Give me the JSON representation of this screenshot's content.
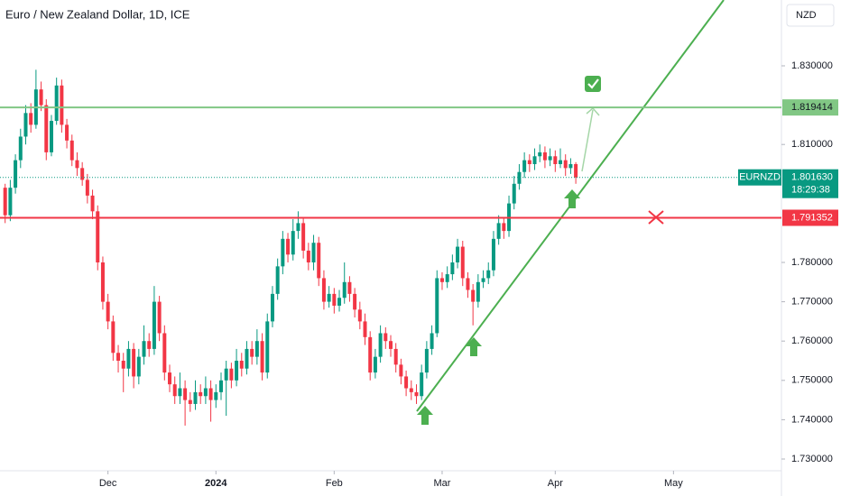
{
  "chart_data": {
    "type": "candlestick",
    "title": "Euro / New Zealand Dollar, 1D, ICE",
    "currency": "NZD",
    "up_color": "#089981",
    "down_color": "#f23645",
    "ylim": [
      1.727018,
      1.846743
    ],
    "yticks": [
      {
        "value": 1.73,
        "label": "1.730000"
      },
      {
        "value": 1.74,
        "label": "1.740000"
      },
      {
        "value": 1.75,
        "label": "1.750000"
      },
      {
        "value": 1.76,
        "label": "1.760000"
      },
      {
        "value": 1.77,
        "label": "1.770000"
      },
      {
        "value": 1.78,
        "label": "1.780000"
      },
      {
        "value": 1.81,
        "label": "1.810000"
      },
      {
        "value": 1.83,
        "label": "1.830000"
      }
    ],
    "xlim": [
      -1,
      151
    ],
    "xticks": [
      {
        "value": 20,
        "label": "Dec"
      },
      {
        "value": 41,
        "label": "2024"
      },
      {
        "value": 64,
        "label": "Feb"
      },
      {
        "value": 85,
        "label": "Mar"
      },
      {
        "value": 107,
        "label": "Apr"
      },
      {
        "value": 130,
        "label": "May"
      }
    ],
    "levels": [
      {
        "value": 1.819414,
        "label": "1.819414",
        "color": "#81c784"
      },
      {
        "value": 1.791352,
        "label": "1.791352",
        "color": "#f23645"
      }
    ],
    "last_price": {
      "value": 1.80163,
      "label": "1.801630",
      "symbol": "EURNZD",
      "countdown": "18:29:38"
    },
    "ohlc": [
      [
        1.799,
        1.8,
        1.79,
        1.792
      ],
      [
        1.792,
        1.801,
        1.7905,
        1.799
      ],
      [
        1.799,
        1.8075,
        1.7975,
        1.806
      ],
      [
        1.806,
        1.814,
        1.804,
        1.812
      ],
      [
        1.812,
        1.82,
        1.81,
        1.818
      ],
      [
        1.818,
        1.8205,
        1.813,
        1.815
      ],
      [
        1.815,
        1.829,
        1.814,
        1.824
      ],
      [
        1.824,
        1.826,
        1.8185,
        1.82
      ],
      [
        1.82,
        1.8215,
        1.806,
        1.808
      ],
      [
        1.808,
        1.8175,
        1.807,
        1.816
      ],
      [
        1.816,
        1.827,
        1.815,
        1.825
      ],
      [
        1.825,
        1.8265,
        1.813,
        1.815
      ],
      [
        1.815,
        1.8165,
        1.809,
        1.811
      ],
      [
        1.811,
        1.8125,
        1.8045,
        1.806
      ],
      [
        1.806,
        1.808,
        1.802,
        1.804
      ],
      [
        1.804,
        1.8055,
        1.7995,
        1.801
      ],
      [
        1.801,
        1.8025,
        1.795,
        1.797
      ],
      [
        1.797,
        1.7985,
        1.791,
        1.793
      ],
      [
        1.793,
        1.7945,
        1.778,
        1.78
      ],
      [
        1.78,
        1.7815,
        1.768,
        1.77
      ],
      [
        1.77,
        1.772,
        1.763,
        1.765
      ],
      [
        1.765,
        1.7665,
        1.755,
        1.757
      ],
      [
        1.757,
        1.759,
        1.752,
        1.755
      ],
      [
        1.755,
        1.757,
        1.747,
        1.753
      ],
      [
        1.753,
        1.76,
        1.751,
        1.758
      ],
      [
        1.758,
        1.7595,
        1.748,
        1.751
      ],
      [
        1.751,
        1.758,
        1.749,
        1.756
      ],
      [
        1.756,
        1.764,
        1.754,
        1.76
      ],
      [
        1.76,
        1.762,
        1.756,
        1.758
      ],
      [
        1.758,
        1.774,
        1.7565,
        1.77
      ],
      [
        1.77,
        1.7715,
        1.76,
        1.762
      ],
      [
        1.762,
        1.764,
        1.75,
        1.752
      ],
      [
        1.752,
        1.754,
        1.747,
        1.749
      ],
      [
        1.749,
        1.751,
        1.744,
        1.746
      ],
      [
        1.746,
        1.752,
        1.744,
        1.748
      ],
      [
        1.748,
        1.75,
        1.7385,
        1.745
      ],
      [
        1.745,
        1.747,
        1.742,
        1.744
      ],
      [
        1.744,
        1.75,
        1.7425,
        1.747
      ],
      [
        1.747,
        1.749,
        1.744,
        1.746
      ],
      [
        1.746,
        1.751,
        1.744,
        1.748
      ],
      [
        1.748,
        1.75,
        1.7395,
        1.745
      ],
      [
        1.745,
        1.749,
        1.743,
        1.747
      ],
      [
        1.747,
        1.752,
        1.745,
        1.75
      ],
      [
        1.75,
        1.755,
        1.741,
        1.753
      ],
      [
        1.753,
        1.7545,
        1.748,
        1.75
      ],
      [
        1.75,
        1.758,
        1.7485,
        1.755
      ],
      [
        1.755,
        1.757,
        1.751,
        1.753
      ],
      [
        1.753,
        1.76,
        1.7515,
        1.758
      ],
      [
        1.758,
        1.76,
        1.754,
        1.756
      ],
      [
        1.756,
        1.763,
        1.754,
        1.76
      ],
      [
        1.76,
        1.762,
        1.75,
        1.752
      ],
      [
        1.752,
        1.767,
        1.7505,
        1.765
      ],
      [
        1.765,
        1.774,
        1.7635,
        1.772
      ],
      [
        1.772,
        1.781,
        1.7705,
        1.779
      ],
      [
        1.779,
        1.788,
        1.777,
        1.786
      ],
      [
        1.786,
        1.7875,
        1.78,
        1.782
      ],
      [
        1.782,
        1.791,
        1.7805,
        1.788
      ],
      [
        1.788,
        1.793,
        1.786,
        1.79
      ],
      [
        1.79,
        1.7915,
        1.781,
        1.783
      ],
      [
        1.783,
        1.785,
        1.778,
        1.78
      ],
      [
        1.78,
        1.787,
        1.778,
        1.785
      ],
      [
        1.785,
        1.7865,
        1.774,
        1.776
      ],
      [
        1.776,
        1.778,
        1.768,
        1.77
      ],
      [
        1.77,
        1.774,
        1.7685,
        1.772
      ],
      [
        1.772,
        1.7735,
        1.767,
        1.769
      ],
      [
        1.769,
        1.773,
        1.7675,
        1.771
      ],
      [
        1.771,
        1.78,
        1.7695,
        1.775
      ],
      [
        1.775,
        1.7765,
        1.77,
        1.772
      ],
      [
        1.772,
        1.7735,
        1.766,
        1.768
      ],
      [
        1.768,
        1.77,
        1.763,
        1.765
      ],
      [
        1.765,
        1.767,
        1.759,
        1.761
      ],
      [
        1.761,
        1.7625,
        1.75,
        1.752
      ],
      [
        1.752,
        1.758,
        1.7505,
        1.756
      ],
      [
        1.756,
        1.764,
        1.7545,
        1.762
      ],
      [
        1.762,
        1.7635,
        1.758,
        1.76
      ],
      [
        1.76,
        1.7615,
        1.756,
        1.758
      ],
      [
        1.758,
        1.7595,
        1.752,
        1.754
      ],
      [
        1.754,
        1.7555,
        1.749,
        1.751
      ],
      [
        1.751,
        1.7525,
        1.746,
        1.748
      ],
      [
        1.748,
        1.75,
        1.745,
        1.747
      ],
      [
        1.747,
        1.749,
        1.744,
        1.746
      ],
      [
        1.746,
        1.754,
        1.745,
        1.752
      ],
      [
        1.752,
        1.76,
        1.7505,
        1.758
      ],
      [
        1.758,
        1.764,
        1.7565,
        1.762
      ],
      [
        1.762,
        1.778,
        1.761,
        1.776
      ],
      [
        1.776,
        1.7775,
        1.773,
        1.775
      ],
      [
        1.775,
        1.779,
        1.7735,
        1.777
      ],
      [
        1.777,
        1.782,
        1.7755,
        1.78
      ],
      [
        1.78,
        1.786,
        1.7785,
        1.784
      ],
      [
        1.784,
        1.7855,
        1.774,
        1.776
      ],
      [
        1.776,
        1.7775,
        1.771,
        1.773
      ],
      [
        1.773,
        1.7745,
        1.764,
        1.77
      ],
      [
        1.77,
        1.777,
        1.7685,
        1.775
      ],
      [
        1.775,
        1.778,
        1.7735,
        1.776
      ],
      [
        1.776,
        1.78,
        1.7745,
        1.778
      ],
      [
        1.778,
        1.788,
        1.7765,
        1.786
      ],
      [
        1.786,
        1.792,
        1.7845,
        1.79
      ],
      [
        1.79,
        1.7915,
        1.786,
        1.788
      ],
      [
        1.788,
        1.797,
        1.7865,
        1.795
      ],
      [
        1.795,
        1.802,
        1.7935,
        1.8
      ],
      [
        1.8,
        1.805,
        1.7985,
        1.803
      ],
      [
        1.803,
        1.808,
        1.8015,
        1.806
      ],
      [
        1.806,
        1.8075,
        1.803,
        1.805
      ],
      [
        1.805,
        1.809,
        1.8035,
        1.807
      ],
      [
        1.807,
        1.81,
        1.8055,
        1.808
      ],
      [
        1.808,
        1.8095,
        1.804,
        1.806
      ],
      [
        1.806,
        1.809,
        1.8045,
        1.807
      ],
      [
        1.807,
        1.8085,
        1.803,
        1.805
      ],
      [
        1.805,
        1.809,
        1.804,
        1.806
      ],
      [
        1.806,
        1.8075,
        1.802,
        1.804
      ],
      [
        1.804,
        1.8065,
        1.8025,
        1.805
      ],
      [
        1.805,
        1.8055,
        1.8,
        1.8016
      ]
    ]
  }
}
